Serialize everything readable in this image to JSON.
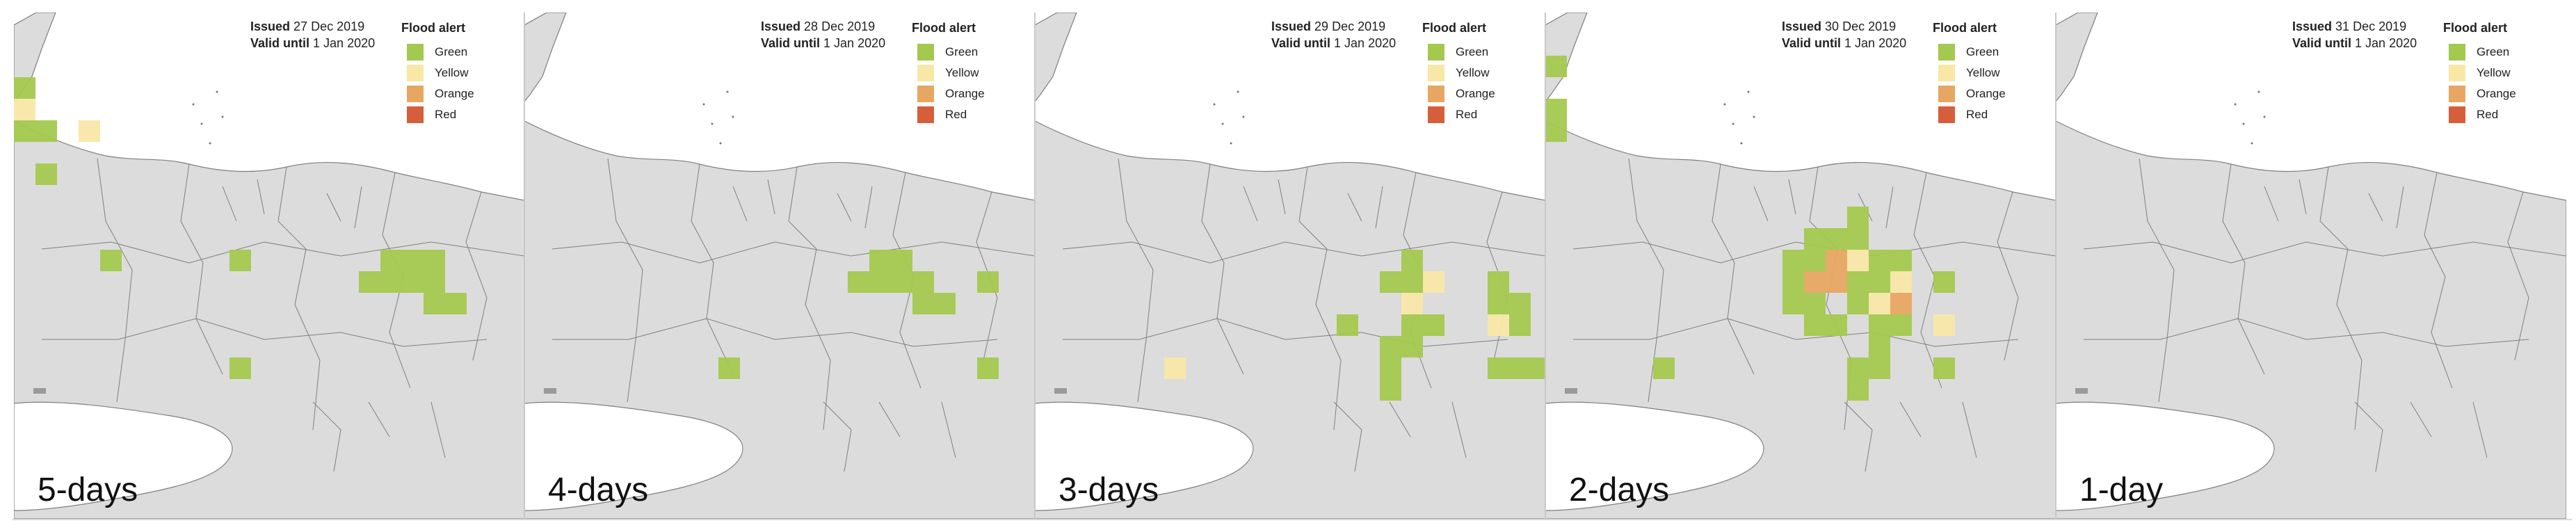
{
  "colors": {
    "Green": "#A3C94E",
    "Yellow": "#F9E7A6",
    "Orange": "#E7A762",
    "Red": "#D55E3B",
    "land": "#DCDCDC",
    "border": "#7f7f7f",
    "sea": "#FFFFFF"
  },
  "legend": {
    "title": "Flood alert",
    "items": [
      {
        "label": "Green",
        "color": "#A3C94E"
      },
      {
        "label": "Yellow",
        "color": "#F9E7A6"
      },
      {
        "label": "Orange",
        "color": "#E7A762"
      },
      {
        "label": "Red",
        "color": "#D55E3B"
      }
    ]
  },
  "panels": [
    {
      "label": "5-days",
      "issued_label": "Issued",
      "issued_date": "27 Dec 2019",
      "valid_label": "Valid until",
      "valid_date": "1 Jan 2020",
      "cells": [
        {
          "col": 0,
          "row": 3,
          "level": "Green"
        },
        {
          "col": 0,
          "row": 4,
          "level": "Yellow"
        },
        {
          "col": 0,
          "row": 5,
          "level": "Green"
        },
        {
          "col": 1,
          "row": 5,
          "level": "Green"
        },
        {
          "col": 1,
          "row": 7,
          "level": "Green"
        },
        {
          "col": 3,
          "row": 5,
          "level": "Yellow"
        },
        {
          "col": 4,
          "row": 11,
          "level": "Green"
        },
        {
          "col": 10,
          "row": 11,
          "level": "Green"
        },
        {
          "col": 17,
          "row": 11,
          "level": "Green"
        },
        {
          "col": 18,
          "row": 11,
          "level": "Green"
        },
        {
          "col": 19,
          "row": 11,
          "level": "Green"
        },
        {
          "col": 16,
          "row": 12,
          "level": "Green"
        },
        {
          "col": 17,
          "row": 12,
          "level": "Green"
        },
        {
          "col": 18,
          "row": 12,
          "level": "Green"
        },
        {
          "col": 19,
          "row": 12,
          "level": "Green"
        },
        {
          "col": 19,
          "row": 13,
          "level": "Green"
        },
        {
          "col": 20,
          "row": 13,
          "level": "Green"
        },
        {
          "col": 10,
          "row": 16,
          "level": "Green"
        }
      ]
    },
    {
      "label": "4-days",
      "issued_label": "Issued",
      "issued_date": "28 Dec 2019",
      "valid_label": "Valid until",
      "valid_date": "1 Jan 2020",
      "cells": [
        {
          "col": 16,
          "row": 11,
          "level": "Green"
        },
        {
          "col": 17,
          "row": 11,
          "level": "Green"
        },
        {
          "col": 15,
          "row": 12,
          "level": "Green"
        },
        {
          "col": 16,
          "row": 12,
          "level": "Green"
        },
        {
          "col": 17,
          "row": 12,
          "level": "Green"
        },
        {
          "col": 18,
          "row": 12,
          "level": "Green"
        },
        {
          "col": 21,
          "row": 12,
          "level": "Green"
        },
        {
          "col": 18,
          "row": 13,
          "level": "Green"
        },
        {
          "col": 19,
          "row": 13,
          "level": "Green"
        },
        {
          "col": 9,
          "row": 16,
          "level": "Green"
        },
        {
          "col": 21,
          "row": 16,
          "level": "Green"
        }
      ]
    },
    {
      "label": "3-days",
      "issued_label": "Issued",
      "issued_date": "29 Dec 2019",
      "valid_label": "Valid until",
      "valid_date": "1 Jan 2020",
      "cells": [
        {
          "col": 17,
          "row": 11,
          "level": "Green"
        },
        {
          "col": 16,
          "row": 12,
          "level": "Green"
        },
        {
          "col": 17,
          "row": 12,
          "level": "Green"
        },
        {
          "col": 18,
          "row": 12,
          "level": "Yellow"
        },
        {
          "col": 21,
          "row": 12,
          "level": "Green"
        },
        {
          "col": 17,
          "row": 13,
          "level": "Yellow"
        },
        {
          "col": 21,
          "row": 13,
          "level": "Green"
        },
        {
          "col": 22,
          "row": 13,
          "level": "Green"
        },
        {
          "col": 14,
          "row": 14,
          "level": "Green"
        },
        {
          "col": 17,
          "row": 14,
          "level": "Green"
        },
        {
          "col": 18,
          "row": 14,
          "level": "Green"
        },
        {
          "col": 21,
          "row": 14,
          "level": "Yellow"
        },
        {
          "col": 22,
          "row": 14,
          "level": "Green"
        },
        {
          "col": 16,
          "row": 15,
          "level": "Green"
        },
        {
          "col": 17,
          "row": 15,
          "level": "Green"
        },
        {
          "col": 6,
          "row": 16,
          "level": "Yellow"
        },
        {
          "col": 16,
          "row": 16,
          "level": "Green"
        },
        {
          "col": 21,
          "row": 16,
          "level": "Green"
        },
        {
          "col": 22,
          "row": 16,
          "level": "Green"
        },
        {
          "col": 23,
          "row": 16,
          "level": "Green"
        },
        {
          "col": 16,
          "row": 17,
          "level": "Green"
        }
      ]
    },
    {
      "label": "2-days",
      "issued_label": "Issued",
      "issued_date": "30 Dec 2019",
      "valid_label": "Valid until",
      "valid_date": "1 Jan 2020",
      "cells": [
        {
          "col": 0,
          "row": 2,
          "level": "Green"
        },
        {
          "col": 0,
          "row": 4,
          "level": "Green"
        },
        {
          "col": 0,
          "row": 5,
          "level": "Green"
        },
        {
          "col": 14,
          "row": 9,
          "level": "Green"
        },
        {
          "col": 12,
          "row": 10,
          "level": "Green"
        },
        {
          "col": 13,
          "row": 10,
          "level": "Green"
        },
        {
          "col": 14,
          "row": 10,
          "level": "Green"
        },
        {
          "col": 11,
          "row": 11,
          "level": "Green"
        },
        {
          "col": 12,
          "row": 11,
          "level": "Green"
        },
        {
          "col": 13,
          "row": 11,
          "level": "Orange"
        },
        {
          "col": 14,
          "row": 11,
          "level": "Yellow"
        },
        {
          "col": 15,
          "row": 11,
          "level": "Green"
        },
        {
          "col": 16,
          "row": 11,
          "level": "Green"
        },
        {
          "col": 11,
          "row": 12,
          "level": "Green"
        },
        {
          "col": 12,
          "row": 12,
          "level": "Orange"
        },
        {
          "col": 13,
          "row": 12,
          "level": "Orange"
        },
        {
          "col": 14,
          "row": 12,
          "level": "Green"
        },
        {
          "col": 15,
          "row": 12,
          "level": "Green"
        },
        {
          "col": 16,
          "row": 12,
          "level": "Yellow"
        },
        {
          "col": 18,
          "row": 12,
          "level": "Green"
        },
        {
          "col": 11,
          "row": 13,
          "level": "Green"
        },
        {
          "col": 12,
          "row": 13,
          "level": "Green"
        },
        {
          "col": 14,
          "row": 13,
          "level": "Green"
        },
        {
          "col": 15,
          "row": 13,
          "level": "Yellow"
        },
        {
          "col": 16,
          "row": 13,
          "level": "Orange"
        },
        {
          "col": 12,
          "row": 14,
          "level": "Green"
        },
        {
          "col": 13,
          "row": 14,
          "level": "Green"
        },
        {
          "col": 15,
          "row": 14,
          "level": "Green"
        },
        {
          "col": 16,
          "row": 14,
          "level": "Green"
        },
        {
          "col": 18,
          "row": 14,
          "level": "Yellow"
        },
        {
          "col": 15,
          "row": 15,
          "level": "Green"
        },
        {
          "col": 5,
          "row": 16,
          "level": "Green"
        },
        {
          "col": 14,
          "row": 16,
          "level": "Green"
        },
        {
          "col": 15,
          "row": 16,
          "level": "Green"
        },
        {
          "col": 18,
          "row": 16,
          "level": "Green"
        },
        {
          "col": 14,
          "row": 17,
          "level": "Green"
        }
      ]
    },
    {
      "label": "1-day",
      "issued_label": "Issued",
      "issued_date": "31 Dec 2019",
      "valid_label": "Valid until",
      "valid_date": "1 Jan 2020",
      "cells": []
    }
  ]
}
